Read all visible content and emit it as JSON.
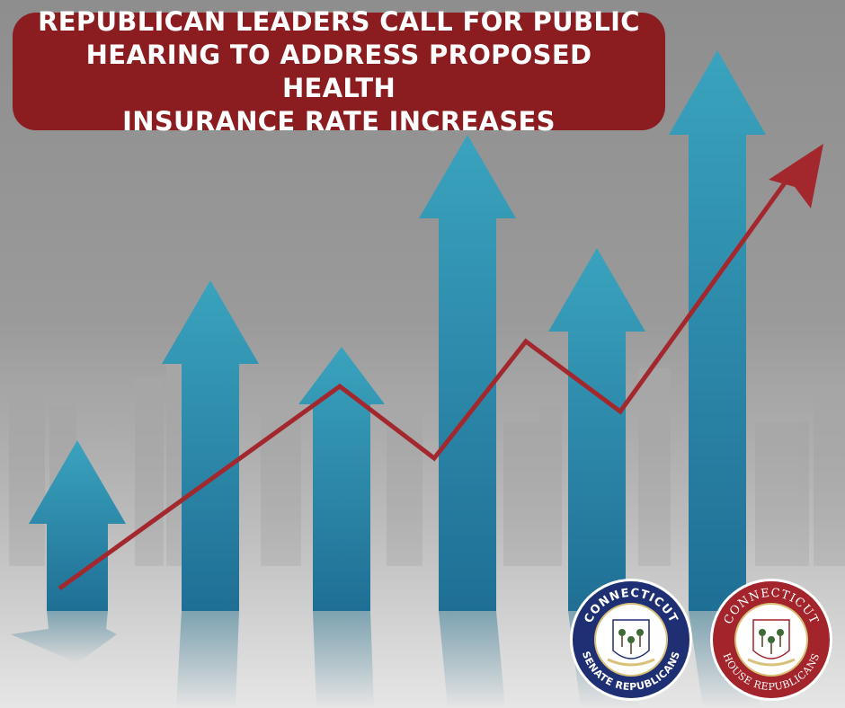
{
  "headline": {
    "line1": "REPUBLICAN LEADERS CALL FOR PUBLIC",
    "line2": "HEARING TO ADDRESS PROPOSED HEALTH",
    "line3": "INSURANCE RATE INCREASES"
  },
  "logos": {
    "senate": {
      "top_text": "CONNECTICUT",
      "bottom_text": "SENATE REPUBLICANS",
      "color": "#1f2f73"
    },
    "house": {
      "top_text": "CONNECTICUT",
      "bottom_text": "HOUSE REPUBLICANS",
      "color": "#a3242b"
    }
  },
  "colors": {
    "headline_bg": "#8b1c1f",
    "arrow_blue": "#2f8aa6",
    "trend_red": "#a3282d"
  }
}
